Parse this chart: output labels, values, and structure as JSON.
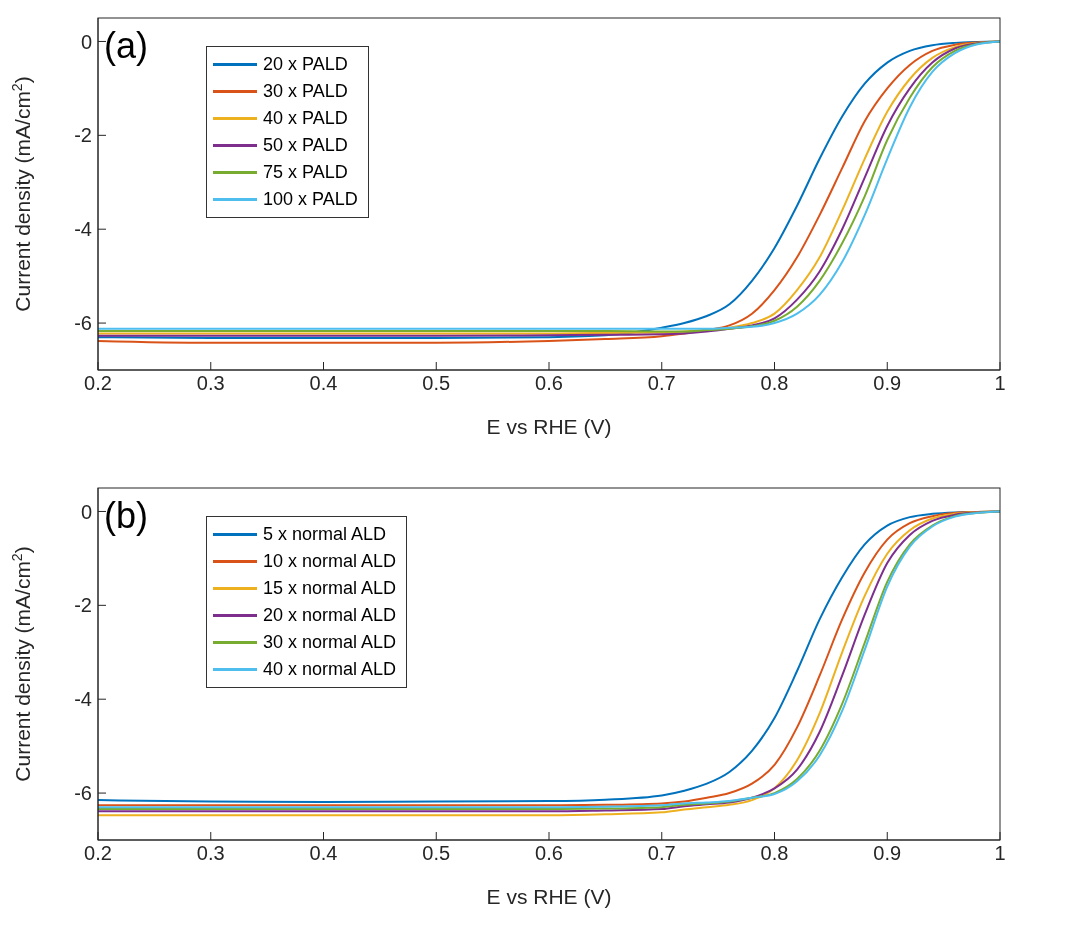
{
  "chart_data": [
    {
      "type": "line",
      "annotations": [
        "(a)"
      ],
      "xlabel": "E vs RHE (V)",
      "ylabel": "Current density (mA/cm$^{2}$)",
      "x": [
        0.2,
        0.3,
        0.4,
        0.5,
        0.6,
        0.65,
        0.7,
        0.72,
        0.74,
        0.76,
        0.78,
        0.8,
        0.82,
        0.84,
        0.86,
        0.88,
        0.9,
        0.92,
        0.94,
        0.96,
        0.98,
        1.0
      ],
      "xlim": [
        0.2,
        1
      ],
      "xticks": [
        0.2,
        0.3,
        0.4,
        0.5,
        0.6,
        0.7,
        0.8,
        0.9,
        1
      ],
      "ylim": [
        -7,
        0.5
      ],
      "yticks": [
        -6,
        -4,
        -2,
        0
      ],
      "grid": false,
      "legend": "top left",
      "line_style": "solid",
      "marker": "none",
      "series": [
        {
          "name": "20 x PALD",
          "color": "#0072bd",
          "values": [
            -6.3,
            -6.32,
            -6.32,
            -6.32,
            -6.3,
            -6.26,
            -6.1,
            -6.0,
            -5.85,
            -5.6,
            -5.1,
            -4.4,
            -3.5,
            -2.5,
            -1.6,
            -0.9,
            -0.45,
            -0.2,
            -0.08,
            -0.03,
            -0.01,
            0
          ]
        },
        {
          "name": "30 x PALD",
          "color": "#d95319",
          "values": [
            -6.38,
            -6.42,
            -6.42,
            -6.42,
            -6.38,
            -6.34,
            -6.28,
            -6.22,
            -6.15,
            -6.05,
            -5.8,
            -5.3,
            -4.6,
            -3.7,
            -2.7,
            -1.7,
            -1.0,
            -0.5,
            -0.2,
            -0.07,
            -0.02,
            0
          ]
        },
        {
          "name": "40 x PALD",
          "color": "#edb120",
          "values": [
            -6.22,
            -6.22,
            -6.22,
            -6.22,
            -6.22,
            -6.21,
            -6.2,
            -6.18,
            -6.15,
            -6.1,
            -6.0,
            -5.8,
            -5.3,
            -4.6,
            -3.6,
            -2.5,
            -1.5,
            -0.8,
            -0.35,
            -0.12,
            -0.03,
            0
          ]
        },
        {
          "name": "50 x PALD",
          "color": "#7e2f8e",
          "values": [
            -6.27,
            -6.27,
            -6.27,
            -6.27,
            -6.26,
            -6.25,
            -6.24,
            -6.22,
            -6.18,
            -6.12,
            -6.05,
            -5.9,
            -5.5,
            -4.9,
            -4.0,
            -2.9,
            -1.8,
            -1.0,
            -0.45,
            -0.15,
            -0.04,
            0
          ]
        },
        {
          "name": "75 x PALD",
          "color": "#77ac30",
          "values": [
            -6.17,
            -6.17,
            -6.17,
            -6.17,
            -6.17,
            -6.17,
            -6.18,
            -6.18,
            -6.15,
            -6.12,
            -6.07,
            -5.95,
            -5.65,
            -5.1,
            -4.3,
            -3.3,
            -2.1,
            -1.2,
            -0.55,
            -0.2,
            -0.05,
            0
          ]
        },
        {
          "name": "100 x PALD",
          "color": "#4dbeee",
          "values": [
            -6.12,
            -6.12,
            -6.12,
            -6.12,
            -6.12,
            -6.12,
            -6.12,
            -6.12,
            -6.12,
            -6.1,
            -6.08,
            -6.0,
            -5.8,
            -5.4,
            -4.7,
            -3.7,
            -2.5,
            -1.4,
            -0.65,
            -0.25,
            -0.06,
            0
          ]
        }
      ]
    },
    {
      "type": "line",
      "annotations": [
        "(b)"
      ],
      "xlabel": "E vs RHE (V)",
      "ylabel": "Current density (mA/cm$^{2}$)",
      "x": [
        0.2,
        0.3,
        0.4,
        0.5,
        0.6,
        0.65,
        0.7,
        0.72,
        0.74,
        0.76,
        0.78,
        0.8,
        0.82,
        0.84,
        0.86,
        0.88,
        0.9,
        0.92,
        0.94,
        0.96,
        0.98,
        1.0
      ],
      "xlim": [
        0.2,
        1
      ],
      "xticks": [
        0.2,
        0.3,
        0.4,
        0.5,
        0.6,
        0.7,
        0.8,
        0.9,
        1
      ],
      "ylim": [
        -7,
        0.5
      ],
      "yticks": [
        -6,
        -4,
        -2,
        0
      ],
      "grid": false,
      "legend": "top left",
      "line_style": "solid",
      "marker": "none",
      "series": [
        {
          "name": "5 x normal ALD",
          "color": "#0072bd",
          "values": [
            -6.15,
            -6.18,
            -6.19,
            -6.18,
            -6.17,
            -6.14,
            -6.05,
            -5.95,
            -5.8,
            -5.55,
            -5.1,
            -4.4,
            -3.4,
            -2.3,
            -1.4,
            -0.7,
            -0.3,
            -0.12,
            -0.05,
            -0.02,
            -0.01,
            0
          ]
        },
        {
          "name": "10 x normal ALD",
          "color": "#d95319",
          "values": [
            -6.26,
            -6.26,
            -6.26,
            -6.26,
            -6.26,
            -6.25,
            -6.22,
            -6.18,
            -6.1,
            -6.0,
            -5.8,
            -5.4,
            -4.6,
            -3.5,
            -2.3,
            -1.3,
            -0.6,
            -0.25,
            -0.1,
            -0.03,
            -0.01,
            0
          ]
        },
        {
          "name": "15 x normal ALD",
          "color": "#edb120",
          "values": [
            -6.47,
            -6.47,
            -6.47,
            -6.47,
            -6.47,
            -6.45,
            -6.41,
            -6.35,
            -6.3,
            -6.25,
            -6.15,
            -5.9,
            -5.3,
            -4.3,
            -3.0,
            -1.8,
            -0.9,
            -0.4,
            -0.15,
            -0.05,
            -0.01,
            0
          ]
        },
        {
          "name": "20 x normal ALD",
          "color": "#7e2f8e",
          "values": [
            -6.39,
            -6.39,
            -6.39,
            -6.39,
            -6.39,
            -6.37,
            -6.34,
            -6.28,
            -6.24,
            -6.2,
            -6.1,
            -5.9,
            -5.5,
            -4.7,
            -3.5,
            -2.2,
            -1.1,
            -0.5,
            -0.2,
            -0.07,
            -0.02,
            0
          ]
        },
        {
          "name": "30 x normal ALD",
          "color": "#77ac30",
          "values": [
            -6.34,
            -6.34,
            -6.34,
            -6.34,
            -6.34,
            -6.33,
            -6.3,
            -6.25,
            -6.22,
            -6.18,
            -6.1,
            -6.0,
            -5.7,
            -5.1,
            -4.1,
            -2.8,
            -1.5,
            -0.7,
            -0.3,
            -0.1,
            -0.03,
            0
          ]
        },
        {
          "name": "40 x normal ALD",
          "color": "#4dbeee",
          "values": [
            -6.3,
            -6.3,
            -6.3,
            -6.3,
            -6.3,
            -6.29,
            -6.26,
            -6.22,
            -6.2,
            -6.17,
            -6.1,
            -6.02,
            -5.75,
            -5.2,
            -4.25,
            -2.95,
            -1.6,
            -0.75,
            -0.32,
            -0.11,
            -0.03,
            0
          ]
        }
      ]
    }
  ]
}
